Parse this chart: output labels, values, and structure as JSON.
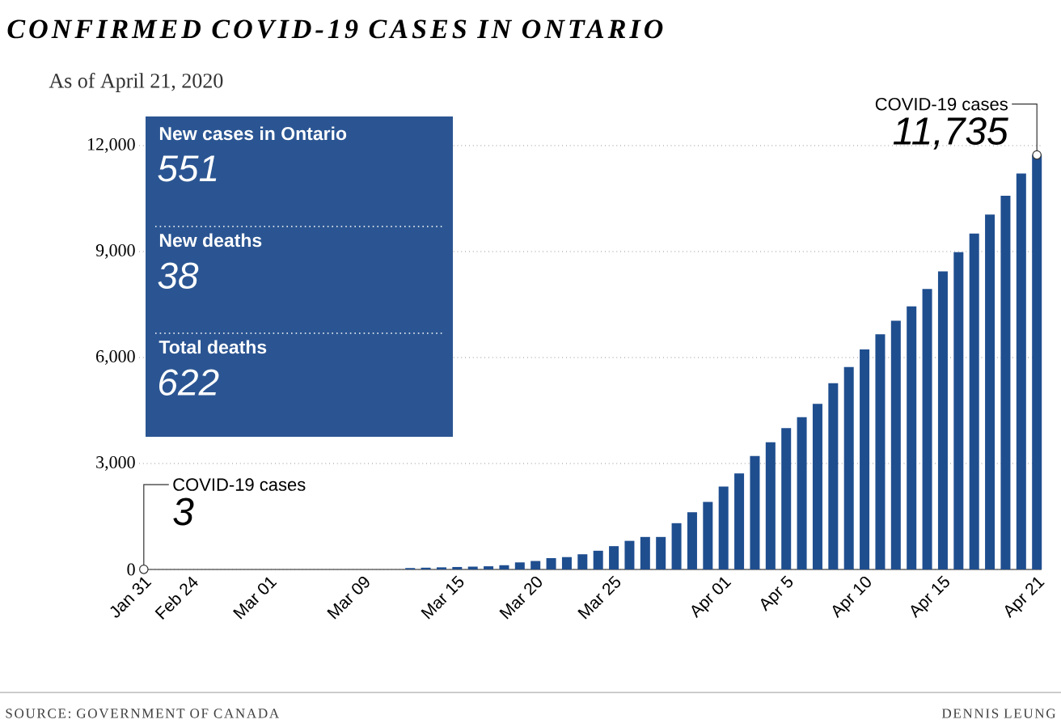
{
  "chart_data": {
    "type": "bar",
    "title": "CONFIRMED COVID-19 CASES IN ONTARIO",
    "subtitle": "As of April 21, 2020",
    "categories": [
      "Jan 31",
      null,
      null,
      "Feb 24",
      null,
      null,
      null,
      null,
      "Mar 01",
      null,
      null,
      null,
      null,
      null,
      "Mar 09",
      null,
      null,
      null,
      null,
      null,
      "Mar 15",
      null,
      null,
      null,
      null,
      "Mar 20",
      null,
      null,
      null,
      null,
      "Mar 25",
      null,
      null,
      null,
      null,
      null,
      null,
      "Apr 01",
      null,
      null,
      null,
      "Apr 5",
      null,
      null,
      null,
      null,
      "Apr 10",
      null,
      null,
      null,
      null,
      "Apr 15",
      null,
      null,
      null,
      null,
      null,
      "Apr 21"
    ],
    "values": [
      3,
      0,
      0,
      0,
      0,
      0,
      0,
      0,
      0,
      0,
      0,
      0,
      0,
      0,
      0,
      0,
      0,
      40,
      50,
      60,
      70,
      80,
      90,
      120,
      200,
      240,
      320,
      350,
      430,
      530,
      660,
      810,
      920,
      920,
      1310,
      1620,
      1910,
      2350,
      2720,
      3210,
      3600,
      4000,
      4310,
      4690,
      5270,
      5730,
      6230,
      6660,
      7040,
      7450,
      7940,
      8440,
      8980,
      9510,
      10050,
      10580,
      11210,
      11735
    ],
    "value_labels": [
      "3",
      null,
      null,
      null,
      null,
      null,
      null,
      null,
      null,
      null,
      null,
      null,
      null,
      null,
      null,
      null,
      null,
      null,
      null,
      null,
      null,
      null,
      null,
      null,
      null,
      null,
      null,
      null,
      null,
      null,
      null,
      null,
      null,
      null,
      null,
      null,
      null,
      null,
      null,
      null,
      null,
      null,
      null,
      null,
      null,
      null,
      null,
      null,
      null,
      null,
      null,
      null,
      null,
      null,
      null,
      null,
      null,
      "11,735"
    ],
    "color": "#1f4e8f",
    "ylim": [
      0,
      12000
    ],
    "yticks": [
      0,
      {
        "value": 3000,
        "label": "3,000"
      },
      {
        "value": 6000,
        "label": "6,000"
      },
      {
        "value": 9000,
        "label": "9,000"
      },
      {
        "value": 12000,
        "label": "12,000"
      }
    ],
    "grid": "y",
    "annotations": [
      "New cases in Ontario",
      "551",
      "New deaths",
      "38",
      "Total deaths",
      "622",
      {
        "text": "COVID-19 cases",
        "x": "Jan 31",
        "y": 3
      },
      {
        "text": "COVID-19 cases",
        "x": "Apr 21",
        "y": 11735
      },
      "SOURCE: GOVERNMENT OF CANADA",
      "DENNIS LEUNG"
    ]
  }
}
